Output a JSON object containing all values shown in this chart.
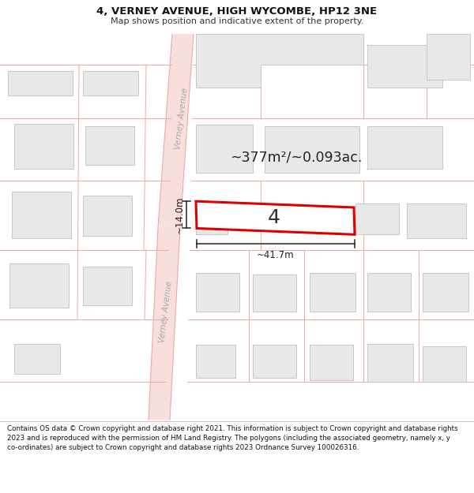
{
  "title": "4, VERNEY AVENUE, HIGH WYCOMBE, HP12 3NE",
  "subtitle": "Map shows position and indicative extent of the property.",
  "footer": "Contains OS data © Crown copyright and database right 2021. This information is subject to Crown copyright and database rights 2023 and is reproduced with the permission of HM Land Registry. The polygons (including the associated geometry, namely x, y co-ordinates) are subject to Crown copyright and database rights 2023 Ordnance Survey 100026316.",
  "area_text": "~377m²/~0.093ac.",
  "width_text": "~41.7m",
  "height_text": "~14.0m",
  "number_text": "4",
  "road_label_upper": "Verney Avenue",
  "road_label_lower": "Verney Avenue",
  "map_bg": "#ffffff",
  "road_fill": "#f9dede",
  "road_line": "#f0a8a8",
  "building_fill": "#e8e8e8",
  "building_outline": "#c8c8c8",
  "plot_line": "#f0a8a8",
  "highlight_color": "#dd0000",
  "highlight_fill": "#ffffff",
  "dim_color": "#222222",
  "text_color": "#222222",
  "road_text_color": "#aaaaaa"
}
